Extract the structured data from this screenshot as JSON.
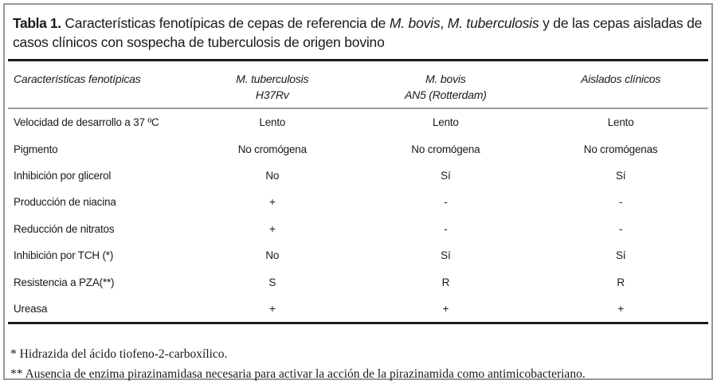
{
  "title": {
    "label": "Tabla 1.",
    "seg1": "Características fenotípicas de cepas de referencia de",
    "species1": "M. bovis",
    "comma": ", ",
    "species2": "M. tuberculosis",
    "seg2": "y de las cepas aisladas de",
    "line2": "casos clínicos con sospecha de tuberculosis de origen bovino"
  },
  "table": {
    "columns": [
      {
        "line1": "Características fenotípicas",
        "line2": ""
      },
      {
        "line1": "M. tuberculosis",
        "line2": "H37Rv"
      },
      {
        "line1": "M. bovis",
        "line2": "AN5 (Rotterdam)"
      },
      {
        "line1": "Aislados clínicos",
        "line2": ""
      }
    ],
    "rows": [
      {
        "label": "Velocidad de desarrollo a 37 ºC",
        "values": [
          "Lento",
          "Lento",
          "Lento"
        ]
      },
      {
        "label": "Pigmento",
        "values": [
          "No cromógena",
          "No cromógena",
          "No cromógenas"
        ]
      },
      {
        "label": "Inhibición por glicerol",
        "values": [
          "No",
          "Sí",
          "Sí"
        ]
      },
      {
        "label": "Producción de niacina",
        "values": [
          "+",
          "-",
          "-"
        ]
      },
      {
        "label": "Reducción de nitratos",
        "values": [
          "+",
          "-",
          "-"
        ]
      },
      {
        "label": "Inhibición por TCH (*)",
        "values": [
          "No",
          "Sí",
          "Sí"
        ]
      },
      {
        "label": "Resistencia a PZA(**)",
        "values": [
          "S",
          "R",
          "R"
        ]
      },
      {
        "label": "Ureasa",
        "values": [
          "+",
          "+",
          "+"
        ]
      }
    ]
  },
  "footnotes": [
    "* Hidrazida del ácido tiofeno-2-carboxílico.",
    "** Ausencia de enzima pirazinamidasa necesaria para activar la acción de la pirazinamida como antimicobacteriano."
  ],
  "colors": {
    "text": "#1a1a1a",
    "rule_dark": "#1c1c1c",
    "rule_gray": "#9c9c9c",
    "outer_border": "#989898"
  }
}
